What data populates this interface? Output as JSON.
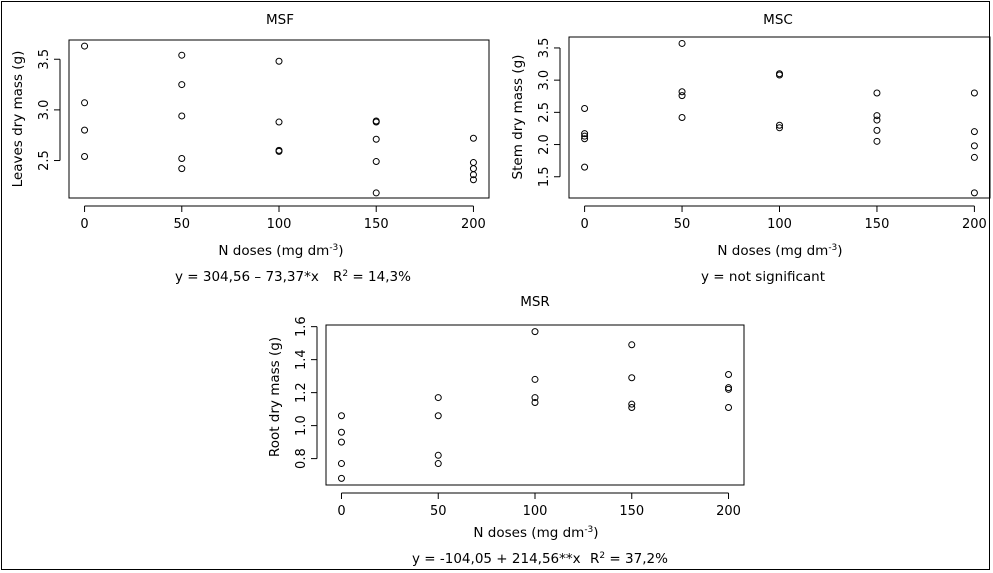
{
  "chart_data": [
    {
      "type": "scatter",
      "title": "MSF",
      "xlabel": "N doses (mg dm",
      "xlabel_sup": "-3",
      "xlabel_end": ")",
      "ylabel": "Leaves dry mass (g)",
      "xlim": [
        -8,
        208
      ],
      "ylim": [
        2.13,
        3.69
      ],
      "xticks": [
        0,
        50,
        100,
        150,
        200
      ],
      "xtick_labels": [
        "0",
        "50",
        "100",
        "150",
        "200"
      ],
      "yticks": [
        2.5,
        3.0,
        3.5
      ],
      "ytick_labels": [
        "2.5",
        "3.0",
        "3.5"
      ],
      "points": [
        [
          0,
          3.63
        ],
        [
          0,
          3.07
        ],
        [
          0,
          2.8
        ],
        [
          0,
          2.54
        ],
        [
          50,
          3.54
        ],
        [
          50,
          3.25
        ],
        [
          50,
          2.94
        ],
        [
          50,
          2.52
        ],
        [
          50,
          2.42
        ],
        [
          100,
          3.48
        ],
        [
          100,
          2.88
        ],
        [
          100,
          2.6
        ],
        [
          100,
          2.59
        ],
        [
          150,
          2.89
        ],
        [
          150,
          2.88
        ],
        [
          150,
          2.71
        ],
        [
          150,
          2.49
        ],
        [
          150,
          2.18
        ],
        [
          200,
          2.72
        ],
        [
          200,
          2.48
        ],
        [
          200,
          2.42
        ],
        [
          200,
          2.36
        ],
        [
          200,
          2.31
        ]
      ],
      "equation": "y = 304,56 – 73,37*x",
      "r2_label": "R",
      "r2_sup": "2",
      "r2_value": " = 14,3%"
    },
    {
      "type": "scatter",
      "title": "MSC",
      "xlabel": "N doses (mg dm",
      "xlabel_sup": "-3",
      "xlabel_end": ")",
      "ylabel": "Stem dry mass (g)",
      "xlim": [
        -8,
        208
      ],
      "ylim": [
        1.17,
        3.67
      ],
      "xticks": [
        0,
        50,
        100,
        150,
        200
      ],
      "xtick_labels": [
        "0",
        "50",
        "100",
        "150",
        "200"
      ],
      "yticks": [
        1.5,
        2.0,
        2.5,
        3.0,
        3.5
      ],
      "ytick_labels": [
        "1.5",
        "2.0",
        "2.5",
        "3.0",
        "3.5"
      ],
      "points": [
        [
          0,
          2.56
        ],
        [
          0,
          2.17
        ],
        [
          0,
          2.13
        ],
        [
          0,
          2.09
        ],
        [
          0,
          1.65
        ],
        [
          50,
          3.57
        ],
        [
          50,
          2.82
        ],
        [
          50,
          2.76
        ],
        [
          50,
          2.42
        ],
        [
          100,
          3.1
        ],
        [
          100,
          3.08
        ],
        [
          100,
          2.3
        ],
        [
          100,
          2.26
        ],
        [
          150,
          2.8
        ],
        [
          150,
          2.45
        ],
        [
          150,
          2.38
        ],
        [
          150,
          2.22
        ],
        [
          150,
          2.05
        ],
        [
          200,
          2.8
        ],
        [
          200,
          2.2
        ],
        [
          200,
          1.98
        ],
        [
          200,
          1.8
        ],
        [
          200,
          1.25
        ]
      ],
      "equation": "y = not significant",
      "r2_label": "",
      "r2_sup": "",
      "r2_value": ""
    },
    {
      "type": "scatter",
      "title": "MSR",
      "xlabel": "N doses (mg dm",
      "xlabel_sup": "-3",
      "xlabel_end": ")",
      "ylabel": "Root dry mass (g)",
      "xlim": [
        -8,
        208
      ],
      "ylim": [
        0.64,
        1.61
      ],
      "xticks": [
        0,
        50,
        100,
        150,
        200
      ],
      "xtick_labels": [
        "0",
        "50",
        "100",
        "150",
        "200"
      ],
      "yticks": [
        0.8,
        1.0,
        1.2,
        1.4,
        1.6
      ],
      "ytick_labels": [
        "0.8",
        "1.0",
        "1.2",
        "1.4",
        "1.6"
      ],
      "points": [
        [
          0,
          1.06
        ],
        [
          0,
          0.96
        ],
        [
          0,
          0.9
        ],
        [
          0,
          0.77
        ],
        [
          0,
          0.68
        ],
        [
          50,
          1.17
        ],
        [
          50,
          1.06
        ],
        [
          50,
          0.82
        ],
        [
          50,
          0.77
        ],
        [
          100,
          1.57
        ],
        [
          100,
          1.28
        ],
        [
          100,
          1.17
        ],
        [
          100,
          1.14
        ],
        [
          150,
          1.49
        ],
        [
          150,
          1.29
        ],
        [
          150,
          1.13
        ],
        [
          150,
          1.11
        ],
        [
          200,
          1.31
        ],
        [
          200,
          1.23
        ],
        [
          200,
          1.22
        ],
        [
          200,
          1.11
        ]
      ],
      "equation": "y = -104,05 + 214,56**x",
      "r2_label": "R",
      "r2_sup": "2",
      "r2_value": " = 37,2%"
    }
  ]
}
